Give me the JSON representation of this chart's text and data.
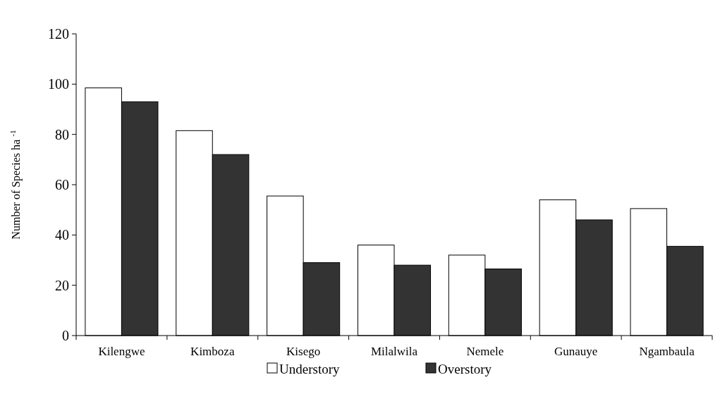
{
  "chart_data": {
    "type": "bar",
    "ylabel": "Number of Species ha $^{-1}$",
    "categories": [
      "Kilengwe",
      "Kimboza",
      "Kisego",
      "Milalwila",
      "Nemele",
      "Gunauye",
      "Ngambaula"
    ],
    "series": [
      {
        "name": "Understory",
        "color": "#ffffff",
        "values": [
          98.5,
          81.5,
          55.5,
          36,
          32,
          54,
          50.5
        ]
      },
      {
        "name": "Overstory",
        "color": "#333333",
        "values": [
          93,
          72,
          29,
          28,
          26.5,
          46,
          35.5
        ]
      }
    ],
    "ylim": [
      0,
      120
    ],
    "yticks": [
      0,
      20,
      40,
      60,
      80,
      100,
      120
    ],
    "grid": false,
    "legend": "bottom"
  }
}
